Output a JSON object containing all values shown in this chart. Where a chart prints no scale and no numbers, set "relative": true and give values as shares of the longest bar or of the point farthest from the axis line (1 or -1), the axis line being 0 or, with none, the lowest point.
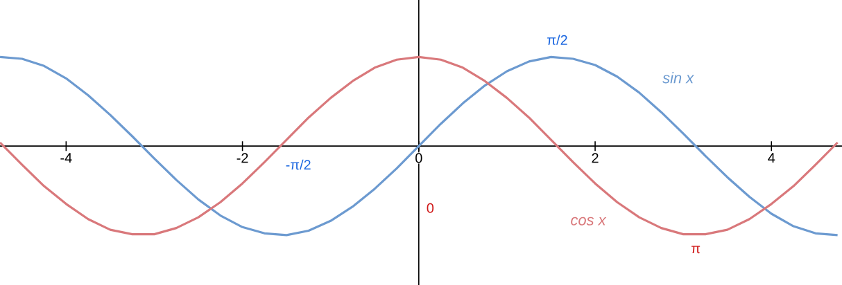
{
  "chart_data": {
    "type": "line",
    "relative": true,
    "x": [
      -4.75,
      -4.5,
      -4.25,
      -4,
      -3.75,
      -3.5,
      -3.25,
      -3,
      -2.75,
      -2.5,
      -2.25,
      -2,
      -1.75,
      -1.5,
      -1.25,
      -1,
      -0.75,
      -0.5,
      -0.25,
      0,
      0.25,
      0.5,
      0.75,
      1,
      1.25,
      1.5,
      1.75,
      2,
      2.25,
      2.5,
      2.75,
      3,
      3.25,
      3.5,
      3.75,
      4,
      4.25,
      4.5,
      4.75
    ],
    "series": [
      {
        "name": "sin x",
        "color": "#6c9ad0",
        "values": [
          1.0,
          0.98,
          0.9,
          0.76,
          0.57,
          0.35,
          0.11,
          -0.14,
          -0.38,
          -0.6,
          -0.78,
          -0.91,
          -0.98,
          -1.0,
          -0.95,
          -0.84,
          -0.68,
          -0.48,
          -0.25,
          0,
          0.25,
          0.48,
          0.68,
          0.84,
          0.95,
          1.0,
          0.98,
          0.91,
          0.78,
          0.6,
          0.38,
          0.14,
          -0.11,
          -0.35,
          -0.57,
          -0.76,
          -0.9,
          -0.98,
          -1.0
        ]
      },
      {
        "name": "cos x",
        "color": "#d9787b",
        "values": [
          0.04,
          -0.21,
          -0.45,
          -0.65,
          -0.82,
          -0.94,
          -0.99,
          -0.99,
          -0.92,
          -0.8,
          -0.63,
          -0.42,
          -0.18,
          0.07,
          0.32,
          0.54,
          0.73,
          0.88,
          0.97,
          1,
          0.97,
          0.88,
          0.73,
          0.54,
          0.32,
          0.07,
          -0.18,
          -0.42,
          -0.63,
          -0.8,
          -0.92,
          -0.99,
          -0.99,
          -0.94,
          -0.82,
          -0.65,
          -0.45,
          -0.21,
          0.04
        ]
      }
    ],
    "xlim": [
      -4.75,
      4.8
    ],
    "xticks": [
      -4,
      -2,
      0,
      2,
      4
    ],
    "tick_labels": "x",
    "marker": "none",
    "line_style": "solid",
    "annotations": [
      {
        "text": "π/2",
        "x": 1.5708,
        "y": 1
      },
      {
        "text": "-π/2",
        "x": -1.5708,
        "y": 0
      },
      "0",
      {
        "text": "π",
        "x": 3.1416,
        "y": -1
      }
    ]
  }
}
